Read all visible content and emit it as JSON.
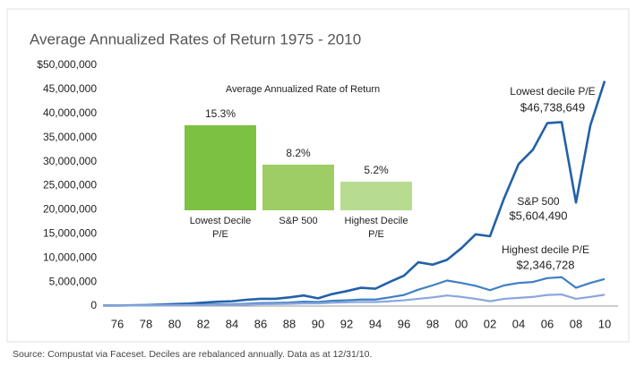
{
  "chart_data": [
    {
      "type": "line",
      "title": "Average Annualized Rates of Return 1975 - 2010",
      "categories": [
        null,
        "76",
        null,
        "78",
        null,
        "80",
        null,
        "82",
        null,
        "84",
        null,
        "86",
        null,
        "88",
        null,
        "90",
        null,
        "92",
        null,
        "94",
        null,
        "96",
        null,
        "98",
        null,
        "00",
        null,
        "02",
        null,
        "04",
        null,
        "06",
        null,
        "08",
        null,
        "10"
      ],
      "ylim": [
        0,
        50000000
      ],
      "yticks": [
        0,
        {
          "value": 5000000,
          "label": "5,000,000"
        },
        {
          "value": 10000000,
          "label": "10,000,000"
        },
        {
          "value": 15000000,
          "label": "15,000,000"
        },
        {
          "value": 20000000,
          "label": "20,000,000"
        },
        {
          "value": 25000000,
          "label": "25,000,000"
        },
        {
          "value": 30000000,
          "label": "30,000,000"
        },
        {
          "value": 35000000,
          "label": "35,000,000"
        },
        {
          "value": 40000000,
          "label": "40,000,000"
        },
        {
          "value": 45000000,
          "label": "45,000,000"
        },
        {
          "value": 50000000,
          "label": "$50,000,000"
        }
      ],
      "grid": false,
      "series": [
        {
          "name": "Lowest decile P/E",
          "color": "#2261a8",
          "values": [
            100000,
            100000,
            150000,
            200000,
            300000,
            400000,
            500000,
            700000,
            900000,
            1000000,
            1300000,
            1500000,
            1500000,
            1800000,
            2200000,
            1600000,
            2500000,
            3100000,
            3800000,
            3600000,
            5000000,
            6300000,
            9100000,
            8600000,
            9600000,
            12000000,
            14900000,
            14500000,
            22500000,
            29500000,
            32500000,
            38000000,
            38200000,
            21500000,
            37500000,
            46738649
          ],
          "value_labels": [
            null,
            null,
            null,
            null,
            null,
            null,
            null,
            null,
            null,
            null,
            null,
            null,
            null,
            null,
            null,
            null,
            null,
            null,
            null,
            null,
            null,
            null,
            null,
            null,
            null,
            null,
            null,
            null,
            null,
            null,
            null,
            null,
            null,
            null,
            null,
            "$46,738,649"
          ]
        },
        {
          "name": "S&P 500",
          "color": "#3f7fc6",
          "values": [
            100000,
            120000,
            130000,
            150000,
            180000,
            220000,
            230000,
            280000,
            350000,
            380000,
            480000,
            600000,
            650000,
            720000,
            900000,
            850000,
            1100000,
            1200000,
            1350000,
            1350000,
            1800000,
            2300000,
            3400000,
            4300000,
            5300000,
            4800000,
            4200000,
            3300000,
            4300000,
            4800000,
            5000000,
            5800000,
            6000000,
            3800000,
            4800000,
            5604490
          ],
          "value_labels": [
            null,
            null,
            null,
            null,
            null,
            null,
            null,
            null,
            null,
            null,
            null,
            null,
            null,
            null,
            null,
            null,
            null,
            null,
            null,
            null,
            null,
            null,
            null,
            null,
            null,
            null,
            null,
            null,
            null,
            null,
            null,
            null,
            null,
            null,
            null,
            "$5,604,490"
          ]
        },
        {
          "name": "Highest decile P/E",
          "color": "#89a7dd",
          "values": [
            100000,
            110000,
            120000,
            130000,
            150000,
            170000,
            180000,
            200000,
            240000,
            260000,
            300000,
            380000,
            420000,
            460000,
            560000,
            560000,
            700000,
            780000,
            850000,
            830000,
            1000000,
            1200000,
            1500000,
            1800000,
            2200000,
            1900000,
            1500000,
            1000000,
            1500000,
            1700000,
            1900000,
            2300000,
            2400000,
            1500000,
            1900000,
            2346728
          ],
          "value_labels": [
            null,
            null,
            null,
            null,
            null,
            null,
            null,
            null,
            null,
            null,
            null,
            null,
            null,
            null,
            null,
            null,
            null,
            null,
            null,
            null,
            null,
            null,
            null,
            null,
            null,
            null,
            null,
            null,
            null,
            null,
            null,
            null,
            null,
            null,
            null,
            "$2,346,728"
          ]
        }
      ]
    },
    {
      "type": "bar",
      "title": "Average Annualized Rate of Return",
      "categories": [
        "Lowest Decile P/E",
        "S&P 500",
        "Highest Decile P/E"
      ],
      "values": [
        15.3,
        8.2,
        5.2
      ],
      "value_labels": [
        "15.3%",
        "8.2%",
        "5.2%"
      ],
      "colors": [
        "#7dc142",
        "#9dcd64",
        "#b8dc8f"
      ]
    }
  ],
  "source": "Source: Compustat via Faceset. Deciles are rebalanced annually. Data as at 12/31/10."
}
